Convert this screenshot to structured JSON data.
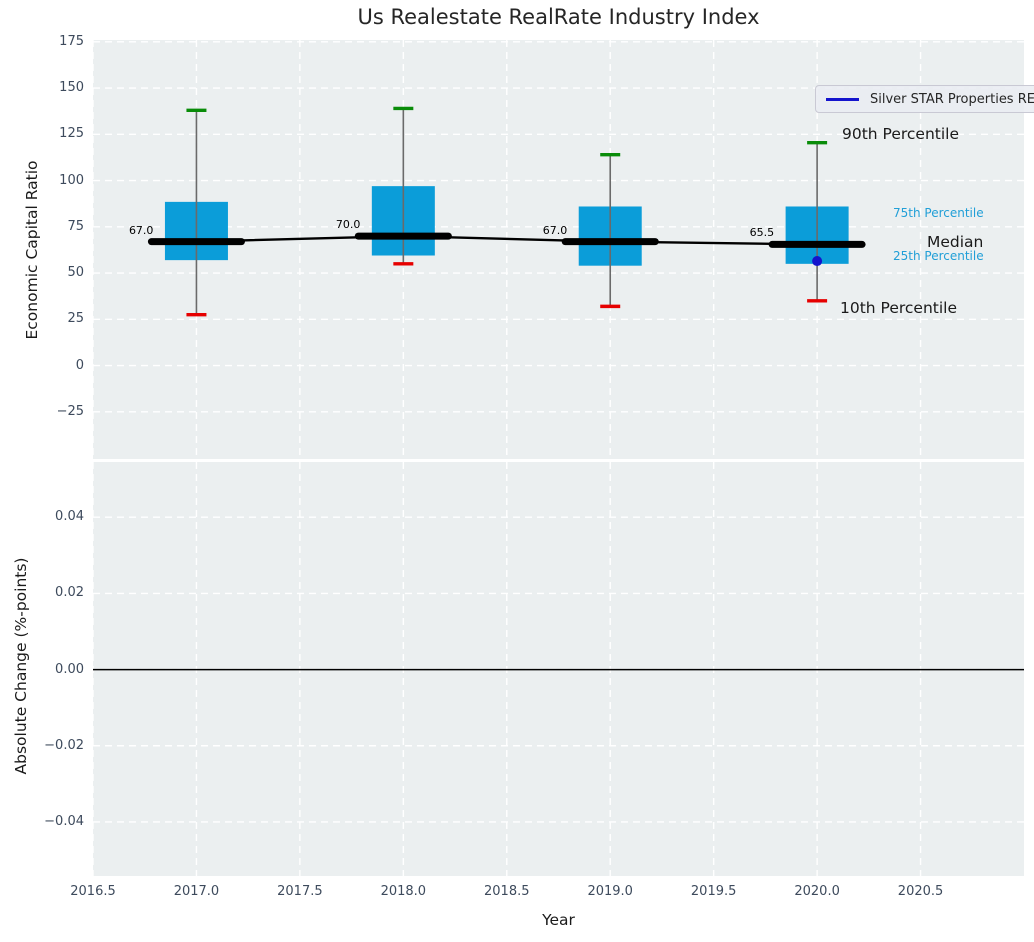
{
  "title": "Us Realestate RealRate Industry Index",
  "legend": {
    "label": "Silver STAR Properties REIT INC"
  },
  "chart_data": {
    "type": "boxplot",
    "title": "Us Realestate RealRate Industry Index",
    "xlabel": "Year",
    "xlim": [
      2016.5,
      2021.0
    ],
    "x_ticks": [
      {
        "value": 2016.5,
        "label": "2016.5"
      },
      {
        "value": 2017.0,
        "label": "2017.0"
      },
      {
        "value": 2017.5,
        "label": "2017.5"
      },
      {
        "value": 2018.0,
        "label": "2018.0"
      },
      {
        "value": 2018.5,
        "label": "2018.5"
      },
      {
        "value": 2019.0,
        "label": "2019.0"
      },
      {
        "value": 2019.5,
        "label": "2019.5"
      },
      {
        "value": 2020.0,
        "label": "2020.0"
      },
      {
        "value": 2020.5,
        "label": "2020.5"
      }
    ],
    "top_panel": {
      "ylabel": "Economic Capital Ratio",
      "ylim": [
        -50.5,
        176
      ],
      "grid": true,
      "y_ticks": [
        {
          "value": 175,
          "label": "175"
        },
        {
          "value": 150,
          "label": "150"
        },
        {
          "value": 125,
          "label": "125"
        },
        {
          "value": 100,
          "label": "100"
        },
        {
          "value": 75,
          "label": "75"
        },
        {
          "value": 50,
          "label": "50"
        },
        {
          "value": 25,
          "label": "25"
        },
        {
          "value": 0,
          "label": "0"
        },
        {
          "value": -25,
          "label": "−25"
        }
      ],
      "boxes": [
        {
          "year": 2017,
          "median_label": "67.0",
          "p10": 27.5,
          "p25": 57.0,
          "median": 67.0,
          "p75": 88.5,
          "p90": 138.0
        },
        {
          "year": 2018,
          "median_label": "70.0",
          "p10": 55.0,
          "p25": 59.5,
          "median": 70.0,
          "p75": 97.0,
          "p90": 139.0
        },
        {
          "year": 2019,
          "median_label": "67.0",
          "p10": 32.0,
          "p25": 54.0,
          "median": 67.0,
          "p75": 86.0,
          "p90": 114.0
        },
        {
          "year": 2020,
          "median_label": "65.5",
          "p10": 35.0,
          "p25": 55.0,
          "median": 65.5,
          "p75": 86.0,
          "p90": 120.5
        }
      ],
      "median_trend": [
        {
          "year": 2017,
          "value": 67.0
        },
        {
          "year": 2018,
          "value": 70.0
        },
        {
          "year": 2019,
          "value": 67.0
        },
        {
          "year": 2020,
          "value": 65.5
        }
      ],
      "company_series": {
        "name": "Silver STAR Properties REIT INC",
        "points": [
          {
            "year": 2020,
            "value": 56.5
          }
        ]
      },
      "annotations": [
        {
          "text": "90th Percentile",
          "style": "big"
        },
        {
          "text": "75th Percentile",
          "style": "small-cyan"
        },
        {
          "text": "Median",
          "style": "big"
        },
        {
          "text": "25th Percentile",
          "style": "small-cyan"
        },
        {
          "text": "10th Percentile",
          "style": "big"
        }
      ]
    },
    "bottom_panel": {
      "ylabel": "Absolute Change (%-points)",
      "ylim": [
        -0.0542,
        0.0545
      ],
      "grid": true,
      "zero_line": 0.0,
      "y_ticks": [
        {
          "value": 0.04,
          "label": "0.04"
        },
        {
          "value": 0.02,
          "label": "0.02"
        },
        {
          "value": 0.0,
          "label": "0.00"
        },
        {
          "value": -0.02,
          "label": "−0.02"
        },
        {
          "value": -0.04,
          "label": "−0.04"
        }
      ]
    },
    "colors": {
      "box_fill": "#0b9dd9",
      "whisker": "#6a6a6a",
      "cap_high": "#098c09",
      "cap_low": "#e60000",
      "median_line": "#000000",
      "company_blue": "#1414cd",
      "cyan_text": "#219fd7",
      "axes_bg": "#ebeff0",
      "grid": "#ffffff",
      "tick_text": "#3d4a5c",
      "dark_text": "#262626"
    }
  }
}
